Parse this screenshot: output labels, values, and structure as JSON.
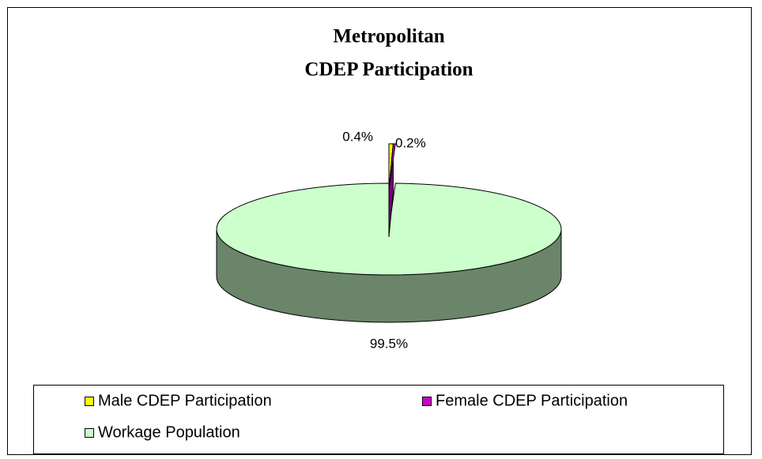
{
  "chart_data": {
    "type": "pie3d",
    "title": [
      "Metropolitan",
      "CDEP Participation"
    ],
    "categories": [
      "Male CDEP Participation",
      "Female CDEP Participation",
      "Workage Population"
    ],
    "values": [
      0.4,
      0.2,
      99.5
    ],
    "value_labels": [
      "0.4%",
      "0.2%",
      "99.5%"
    ],
    "colors": [
      "#ffff00",
      "#cc00cc",
      "#ccffcc"
    ],
    "legend": "bottom"
  }
}
